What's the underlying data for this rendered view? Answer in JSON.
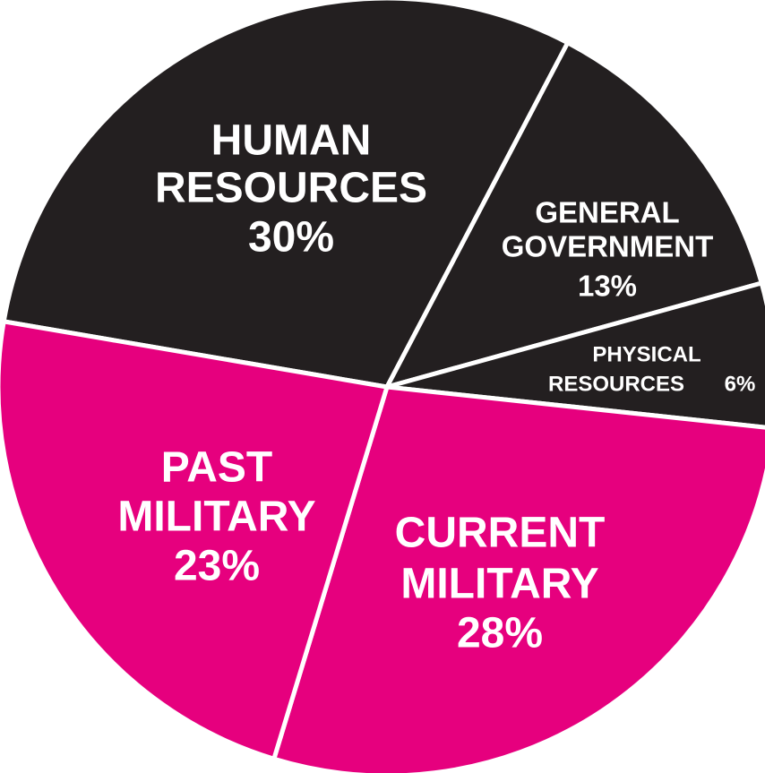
{
  "chart_data": {
    "type": "pie",
    "categories": [
      [
        "HUMAN",
        "RESOURCES"
      ],
      [
        "GENERAL",
        "GOVERNMENT"
      ],
      [
        "PHYSICAL",
        "RESOURCES"
      ],
      [
        "CURRENT",
        "MILITARY"
      ],
      [
        "PAST",
        "MILITARY"
      ]
    ],
    "values": [
      30,
      13,
      6,
      28,
      23
    ],
    "value_labels": [
      "30%",
      "13%",
      "6%",
      "28%",
      "23%"
    ],
    "colors": [
      "#231f20",
      "#231f20",
      "#231f20",
      "#e6007e",
      "#e6007e"
    ]
  }
}
